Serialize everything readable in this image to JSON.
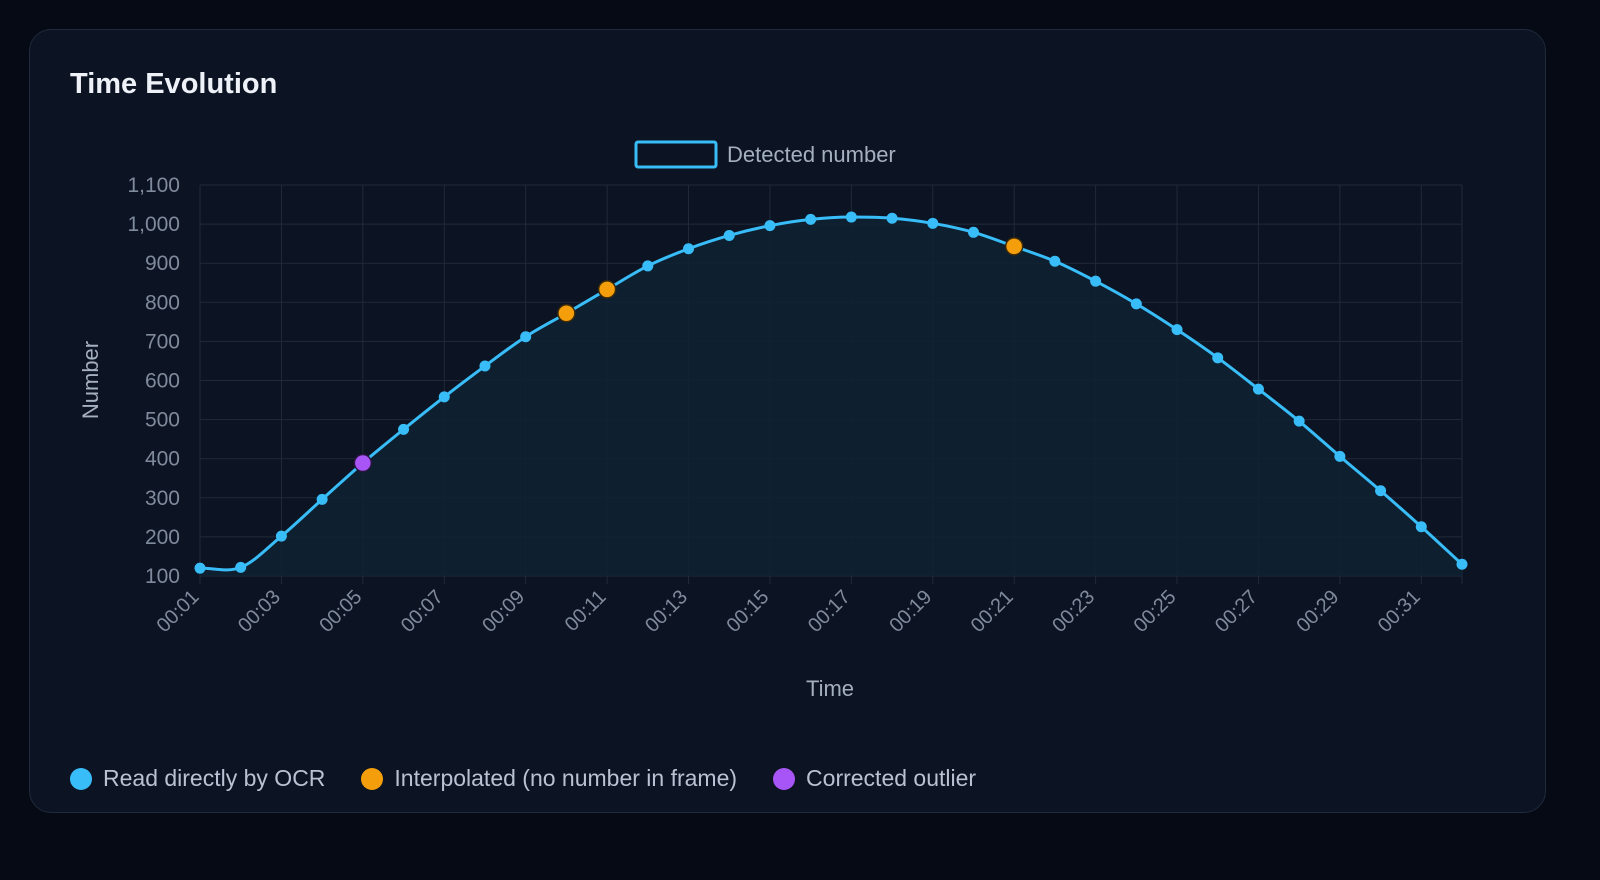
{
  "card": {
    "title": "Time Evolution"
  },
  "colors": {
    "line": "#38bdf8",
    "interpolated": "#f59e0b",
    "outlier": "#a855f7",
    "grid": "#1f2b3b",
    "tick_text": "#7f8b9c",
    "label_text": "#a4afbf",
    "area_fill": "#0f2233"
  },
  "status_legend": [
    {
      "label": "Read directly by OCR",
      "color": "#38bdf8"
    },
    {
      "label": "Interpolated (no number in frame)",
      "color": "#f59e0b"
    },
    {
      "label": "Corrected outlier",
      "color": "#a855f7"
    }
  ],
  "chart_data": {
    "type": "line",
    "title": "",
    "xlabel": "Time",
    "ylabel": "Number",
    "ylim": [
      100,
      1100
    ],
    "y_ticks": [
      100,
      200,
      300,
      400,
      500,
      600,
      700,
      800,
      900,
      1000,
      1100
    ],
    "grid": true,
    "legend_position": "top-center",
    "x": [
      "00:01",
      "00:02",
      "00:03",
      "00:04",
      "00:05",
      "00:06",
      "00:07",
      "00:08",
      "00:09",
      "00:10",
      "00:11",
      "00:12",
      "00:13",
      "00:14",
      "00:15",
      "00:16",
      "00:17",
      "00:18",
      "00:19",
      "00:20",
      "00:21",
      "00:22",
      "00:23",
      "00:24",
      "00:25",
      "00:26",
      "00:27",
      "00:28",
      "00:29",
      "00:30",
      "00:31",
      "00:32"
    ],
    "x_tick_labels": [
      "00:01",
      "00:03",
      "00:05",
      "00:07",
      "00:09",
      "00:11",
      "00:13",
      "00:15",
      "00:17",
      "00:19",
      "00:21",
      "00:23",
      "00:25",
      "00:27",
      "00:29",
      "00:31"
    ],
    "series": [
      {
        "name": "Detected number",
        "values": [
          120,
          122,
          202,
          296,
          389,
          475,
          558,
          637,
          712,
          772,
          833,
          893,
          937,
          971,
          996,
          1012,
          1018,
          1015,
          1002,
          979,
          943,
          905,
          854,
          796,
          730,
          658,
          578,
          496,
          406,
          318,
          226,
          130
        ],
        "point_status": [
          "ocr",
          "ocr",
          "ocr",
          "ocr",
          "outlier",
          "ocr",
          "ocr",
          "ocr",
          "ocr",
          "interpolated",
          "interpolated",
          "ocr",
          "ocr",
          "ocr",
          "ocr",
          "ocr",
          "ocr",
          "ocr",
          "ocr",
          "ocr",
          "interpolated",
          "ocr",
          "ocr",
          "ocr",
          "ocr",
          "ocr",
          "ocr",
          "ocr",
          "ocr",
          "ocr",
          "ocr",
          "ocr"
        ]
      }
    ]
  }
}
